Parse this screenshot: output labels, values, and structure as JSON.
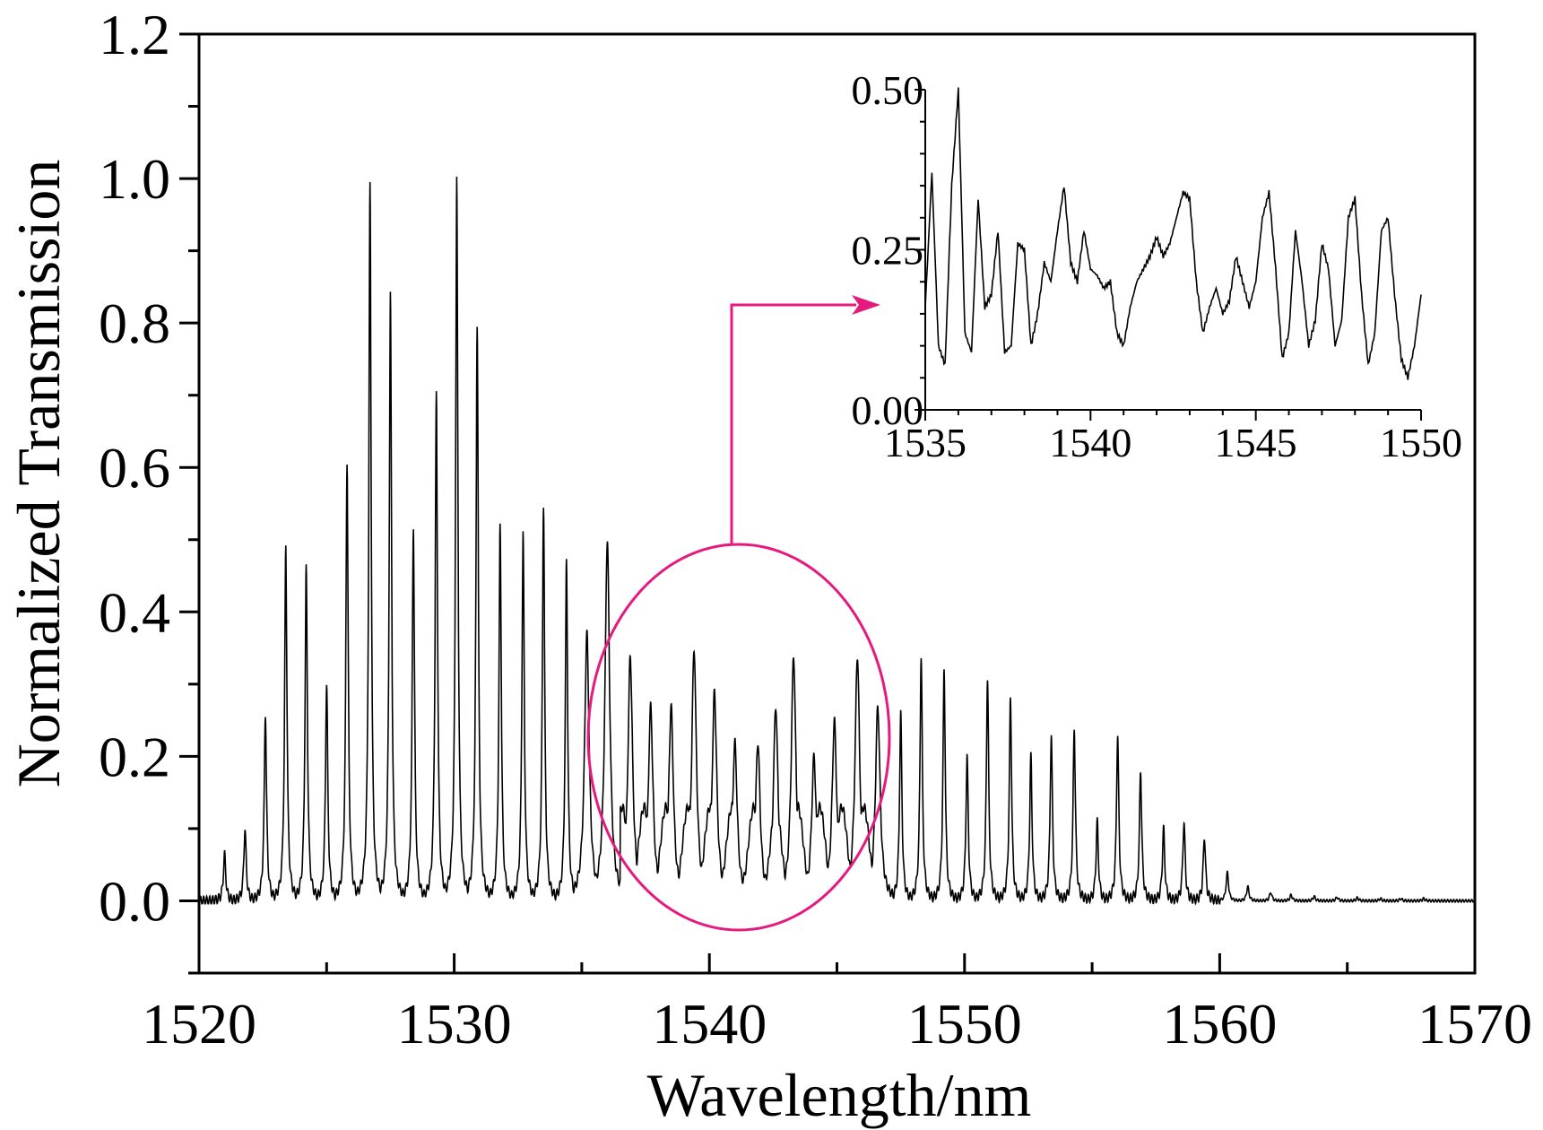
{
  "chart_data": [
    {
      "type": "line",
      "xlabel": "Wavelength/nm",
      "ylabel": "Normalized Transmission",
      "xlim": [
        1520,
        1570
      ],
      "ylim": [
        -0.1,
        1.2
      ],
      "xticks": [
        1520,
        1530,
        1540,
        1550,
        1560,
        1570
      ],
      "xtick_labels": [
        "1520",
        "1530",
        "1540",
        "1550",
        "1560",
        "1570"
      ],
      "yticks": [
        0.0,
        0.2,
        0.4,
        0.6,
        0.8,
        1.0,
        1.2
      ],
      "ytick_labels": [
        "0.0",
        "0.2",
        "0.4",
        "0.6",
        "0.8",
        "1.0",
        "1.2"
      ],
      "grid": false,
      "line_color": "#000000",
      "series": [
        {
          "peaks": [
            [
              1521.0,
              0.065
            ],
            [
              1521.8,
              0.1
            ],
            [
              1522.6,
              0.26
            ],
            [
              1523.4,
              0.49
            ],
            [
              1524.2,
              0.46
            ],
            [
              1525.0,
              0.3
            ],
            [
              1525.8,
              0.61
            ],
            [
              1526.7,
              0.99
            ],
            [
              1527.5,
              0.84
            ],
            [
              1528.4,
              0.52
            ],
            [
              1529.3,
              0.7
            ],
            [
              1530.1,
              1.0
            ],
            [
              1530.9,
              0.8
            ],
            [
              1531.8,
              0.52
            ],
            [
              1532.7,
              0.51
            ],
            [
              1533.5,
              0.55
            ],
            [
              1534.4,
              0.47
            ],
            [
              1535.2,
              0.37
            ],
            [
              1536.0,
              0.5
            ],
            [
              1536.9,
              0.34
            ],
            [
              1537.7,
              0.27
            ],
            [
              1538.5,
              0.27
            ],
            [
              1539.4,
              0.35
            ],
            [
              1540.2,
              0.29
            ],
            [
              1541.0,
              0.22
            ],
            [
              1541.9,
              0.22
            ],
            [
              1542.6,
              0.27
            ],
            [
              1543.3,
              0.34
            ],
            [
              1544.1,
              0.2
            ],
            [
              1544.9,
              0.25
            ],
            [
              1545.8,
              0.34
            ],
            [
              1546.6,
              0.27
            ],
            [
              1547.5,
              0.26
            ],
            [
              1548.3,
              0.34
            ],
            [
              1549.2,
              0.32
            ],
            [
              1550.1,
              0.2
            ],
            [
              1550.9,
              0.31
            ],
            [
              1551.8,
              0.28
            ],
            [
              1552.6,
              0.2
            ],
            [
              1553.4,
              0.23
            ],
            [
              1554.3,
              0.24
            ],
            [
              1555.2,
              0.11
            ],
            [
              1556.0,
              0.23
            ],
            [
              1556.9,
              0.18
            ],
            [
              1557.8,
              0.1
            ],
            [
              1558.6,
              0.11
            ],
            [
              1559.4,
              0.09
            ],
            [
              1560.3,
              0.04
            ],
            [
              1561.1,
              0.02
            ],
            [
              1562.0,
              0.012
            ],
            [
              1562.8,
              0.008
            ],
            [
              1563.7,
              0.006
            ],
            [
              1564.6,
              0.005
            ],
            [
              1565.4,
              0.004
            ],
            [
              1566.3,
              0.003
            ],
            [
              1567.1,
              0.003
            ],
            [
              1568.0,
              0.003
            ]
          ]
        }
      ]
    },
    {
      "type": "line",
      "role": "inset",
      "xlim": [
        1535,
        1550
      ],
      "ylim": [
        0.0,
        0.5
      ],
      "xticks": [
        1535,
        1540,
        1545,
        1550
      ],
      "xtick_labels": [
        "1535",
        "1540",
        "1545",
        "1550"
      ],
      "yticks": [
        0.0,
        0.25,
        0.5
      ],
      "ytick_labels": [
        "0.00",
        "0.25",
        "0.50"
      ],
      "grid": false,
      "line_color": "#000000",
      "series": [
        {
          "x": [
            1535.0,
            1535.2,
            1535.4,
            1535.6,
            1535.8,
            1536.0,
            1536.2,
            1536.4,
            1536.6,
            1536.8,
            1537.0,
            1537.2,
            1537.4,
            1537.6,
            1537.8,
            1538.0,
            1538.2,
            1538.4,
            1538.6,
            1538.8,
            1539.0,
            1539.2,
            1539.4,
            1539.6,
            1539.8,
            1540.0,
            1540.2,
            1540.4,
            1540.6,
            1540.8,
            1541.0,
            1541.2,
            1541.4,
            1541.6,
            1541.8,
            1542.0,
            1542.2,
            1542.4,
            1542.6,
            1542.8,
            1543.0,
            1543.2,
            1543.4,
            1543.6,
            1543.8,
            1544.0,
            1544.2,
            1544.4,
            1544.6,
            1544.8,
            1545.0,
            1545.2,
            1545.4,
            1545.6,
            1545.8,
            1546.0,
            1546.2,
            1546.4,
            1546.6,
            1546.8,
            1547.0,
            1547.2,
            1547.4,
            1547.6,
            1547.8,
            1548.0,
            1548.2,
            1548.4,
            1548.6,
            1548.8,
            1549.0,
            1549.2,
            1549.4,
            1549.6,
            1549.8,
            1550.0
          ],
          "y": [
            0.16,
            0.37,
            0.1,
            0.07,
            0.35,
            0.5,
            0.12,
            0.09,
            0.33,
            0.16,
            0.18,
            0.28,
            0.09,
            0.1,
            0.26,
            0.25,
            0.1,
            0.15,
            0.23,
            0.2,
            0.28,
            0.35,
            0.23,
            0.2,
            0.28,
            0.22,
            0.21,
            0.19,
            0.2,
            0.12,
            0.1,
            0.16,
            0.2,
            0.22,
            0.24,
            0.27,
            0.24,
            0.26,
            0.3,
            0.34,
            0.33,
            0.2,
            0.12,
            0.16,
            0.19,
            0.15,
            0.17,
            0.24,
            0.2,
            0.16,
            0.2,
            0.3,
            0.34,
            0.22,
            0.08,
            0.12,
            0.28,
            0.2,
            0.1,
            0.14,
            0.26,
            0.22,
            0.1,
            0.14,
            0.3,
            0.33,
            0.18,
            0.07,
            0.12,
            0.28,
            0.3,
            0.18,
            0.08,
            0.05,
            0.1,
            0.18
          ]
        }
      ]
    }
  ],
  "highlight_color": "#e6197e"
}
